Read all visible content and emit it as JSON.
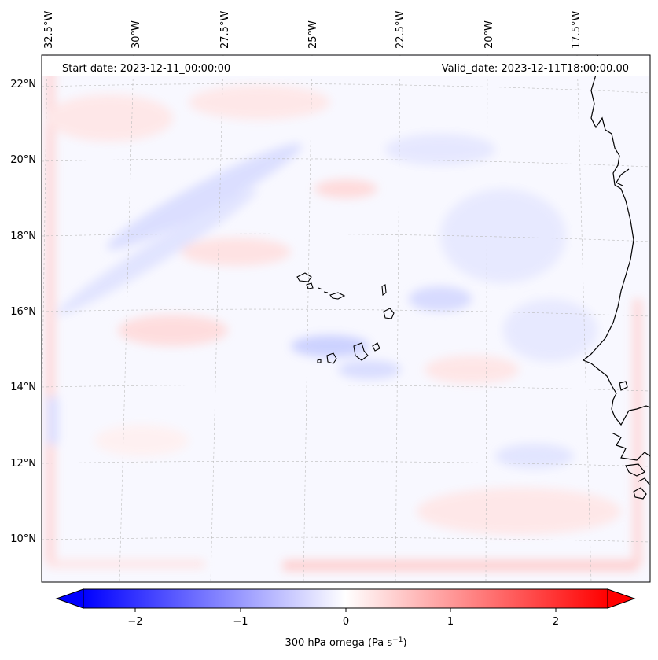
{
  "header": {
    "start_date": "Start date: 2023-12-11_00:00:00",
    "valid_date": "Valid_date: 2023-12-11T18:00:00.00"
  },
  "map": {
    "lon_labels": [
      "32.5°W",
      "30°W",
      "27.5°W",
      "25°W",
      "22.5°W",
      "20°W",
      "17.5°W"
    ],
    "lat_labels": [
      "22°N",
      "20°N",
      "18°N",
      "16°N",
      "14°N",
      "12°N",
      "10°N"
    ],
    "colors": {
      "negative": "#0000ff",
      "positive": "#ff0000",
      "neutral": "#ffffff"
    }
  },
  "colorbar": {
    "ticks": [
      "−2",
      "−1",
      "0",
      "1",
      "2"
    ],
    "label_main": "300 hPa omega (Pa s",
    "label_sup": "−1",
    "label_end": ")",
    "range": [
      -2.5,
      2.5
    ]
  }
}
